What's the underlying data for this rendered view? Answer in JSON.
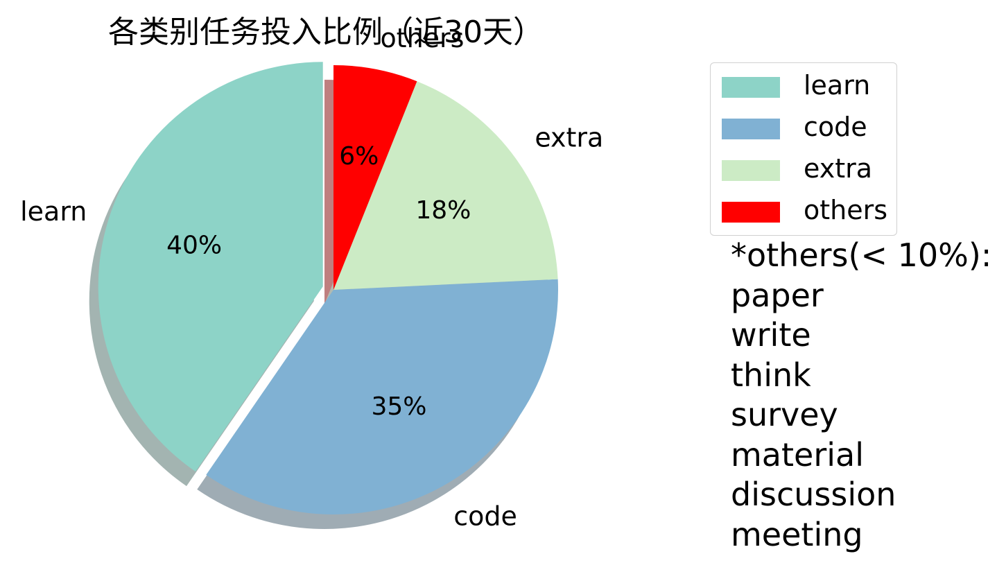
{
  "chart_data": {
    "type": "pie",
    "title": "各类别任务投入比例（近30天）",
    "slices": [
      {
        "label": "learn",
        "value": 40,
        "pct_label": "40%",
        "color": "#8dd3c7",
        "exploded": true
      },
      {
        "label": "code",
        "value": 35,
        "pct_label": "35%",
        "color": "#80b1d3",
        "exploded": false
      },
      {
        "label": "extra",
        "value": 18,
        "pct_label": "18%",
        "color": "#ccebc5",
        "exploded": false
      },
      {
        "label": "others",
        "value": 6,
        "pct_label": "6%",
        "color": "#ff0000",
        "exploded": false
      }
    ],
    "start_angle_deg": 90,
    "direction": "counterclockwise",
    "shadow": true,
    "legend": {
      "placement": "right",
      "entries": [
        "learn",
        "code",
        "extra",
        "others"
      ]
    }
  },
  "annotation": {
    "lines": [
      "*others(< 10%):",
      "paper",
      "write",
      "think",
      "survey",
      "material",
      "discussion",
      "meeting"
    ]
  }
}
